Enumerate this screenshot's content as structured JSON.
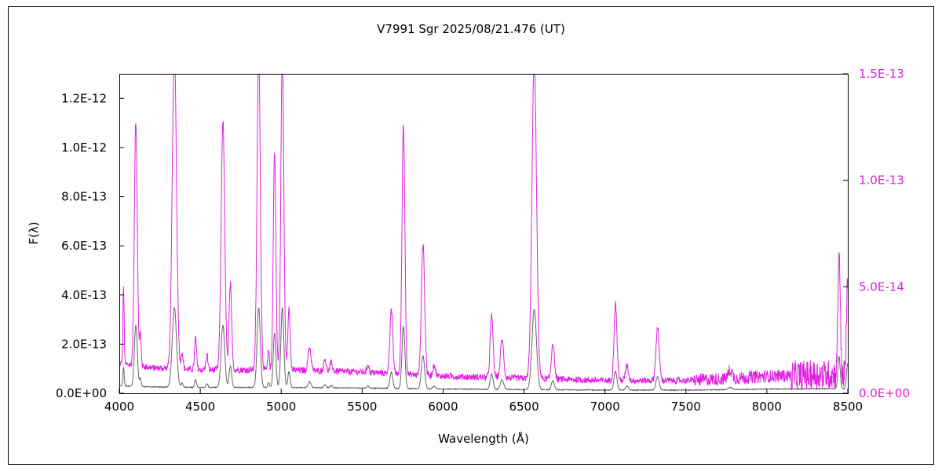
{
  "chart_data": {
    "type": "line",
    "title": "V7991 Sgr   2025/08/21.476 (UT)",
    "xlabel": "Wavelength (Å)",
    "ylabel": "F(λ)",
    "xlim": [
      4000,
      8500
    ],
    "ylim_left": [
      0,
      1.3e-12
    ],
    "ylim_right": [
      0,
      1.5e-13
    ],
    "x_ticks": [
      "4000",
      "4500",
      "5000",
      "5500",
      "6000",
      "6500",
      "7000",
      "7500",
      "8000",
      "8500"
    ],
    "x_tick_values": [
      4000,
      4500,
      5000,
      5500,
      6000,
      6500,
      7000,
      7500,
      8000,
      8500
    ],
    "y_left_ticks": [
      "0.0E+00",
      "2.0E-13",
      "4.0E-13",
      "6.0E-13",
      "8.0E-13",
      "1.0E-12",
      "1.2E-12"
    ],
    "y_left_tick_values": [
      0,
      2e-13,
      4e-13,
      6e-13,
      8e-13,
      1e-12,
      1.2e-12
    ],
    "y_right_ticks": [
      "0.0E+00",
      "5.0E-14",
      "1.0E-13",
      "1.5E-13"
    ],
    "y_right_tick_values": [
      0,
      5e-14,
      1e-13,
      1.5e-13
    ],
    "grid": false,
    "colors": {
      "magenta": "#e020e0",
      "gray": "#666666",
      "right_axis_text": "#e020e0",
      "axis": "#000000"
    },
    "continuum_right": [
      [
        4000,
        1.4e-14
      ],
      [
        4200,
        1.2e-14
      ],
      [
        4500,
        1.1e-14
      ],
      [
        5000,
        1.1e-14
      ],
      [
        5500,
        1e-14
      ],
      [
        6000,
        8e-15
      ],
      [
        6500,
        7e-15
      ],
      [
        7000,
        6e-15
      ],
      [
        7500,
        6e-15
      ],
      [
        7800,
        7e-15
      ],
      [
        8000,
        8e-15
      ],
      [
        8500,
        9e-15
      ]
    ],
    "emission_lines": [
      {
        "x": 4026,
        "peak": 3.5e-14,
        "width": 4
      },
      {
        "x": 4102,
        "peak": 1.15e-13,
        "width": 9
      },
      {
        "x": 4130,
        "peak": 1.5e-14,
        "width": 5
      },
      {
        "x": 4340,
        "peak": 1.5e-13,
        "width": 13
      },
      {
        "x": 4388,
        "peak": 8e-15,
        "width": 6
      },
      {
        "x": 4471,
        "peak": 1.5e-14,
        "width": 6
      },
      {
        "x": 4541,
        "peak": 7e-15,
        "width": 6
      },
      {
        "x": 4640,
        "peak": 1.17e-13,
        "width": 11
      },
      {
        "x": 4686,
        "peak": 4e-14,
        "width": 8
      },
      {
        "x": 4861,
        "peak": 1.5e-13,
        "width": 10
      },
      {
        "x": 4922,
        "peak": 9e-15,
        "width": 5
      },
      {
        "x": 4959,
        "peak": 1.02e-13,
        "width": 8
      },
      {
        "x": 5007,
        "peak": 1.5e-13,
        "width": 9
      },
      {
        "x": 5048,
        "peak": 3e-14,
        "width": 7
      },
      {
        "x": 5175,
        "peak": 1.1e-14,
        "width": 9
      },
      {
        "x": 5270,
        "peak": 6e-15,
        "width": 7
      },
      {
        "x": 5309,
        "peak": 4e-15,
        "width": 7
      },
      {
        "x": 5536,
        "peak": 4e-15,
        "width": 6
      },
      {
        "x": 5680,
        "peak": 3e-14,
        "width": 9
      },
      {
        "x": 5755,
        "peak": 1.17e-13,
        "width": 9
      },
      {
        "x": 5876,
        "peak": 6.2e-14,
        "width": 10
      },
      {
        "x": 5945,
        "peak": 5e-15,
        "width": 8
      },
      {
        "x": 6300,
        "peak": 2.9e-14,
        "width": 9
      },
      {
        "x": 6364,
        "peak": 1.8e-14,
        "width": 10
      },
      {
        "x": 6563,
        "peak": 1.5e-13,
        "width": 14
      },
      {
        "x": 6678,
        "peak": 1.7e-14,
        "width": 9
      },
      {
        "x": 7065,
        "peak": 3.6e-14,
        "width": 9
      },
      {
        "x": 7136,
        "peak": 7e-15,
        "width": 9
      },
      {
        "x": 7325,
        "peak": 2.5e-14,
        "width": 10
      },
      {
        "x": 7774,
        "peak": 4e-15,
        "width": 12
      },
      {
        "x": 8446,
        "peak": 6e-14,
        "width": 7
      },
      {
        "x": 8498,
        "peak": 4.5e-14,
        "width": 6
      }
    ],
    "scale_left_per_right": 8.667
  }
}
